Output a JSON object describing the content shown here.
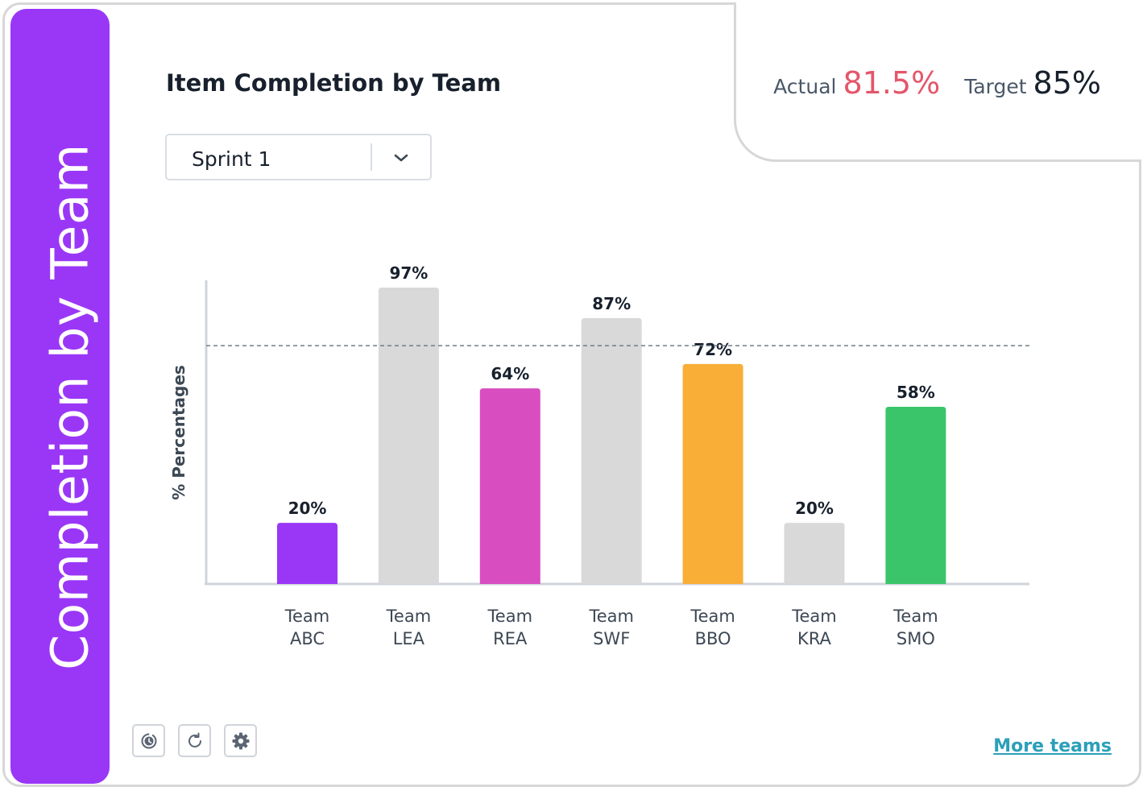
{
  "sidebar": {
    "title": "Completion by Team"
  },
  "kpi": {
    "actual_label": "Actual",
    "actual_value": "81.5%",
    "target_label": "Target",
    "target_value": "85%"
  },
  "heading": "Item Completion by Team",
  "sprint_select": {
    "value": "Sprint 1"
  },
  "chart_data": {
    "type": "bar",
    "ylabel": "% Percentages",
    "categories": [
      [
        "Team",
        "ABC"
      ],
      [
        "Team",
        "LEA"
      ],
      [
        "Team",
        "REA"
      ],
      [
        "Team",
        "SWF"
      ],
      [
        "Team",
        "BBO"
      ],
      [
        "Team",
        "KRA"
      ],
      [
        "Team",
        "SMO"
      ]
    ],
    "values": [
      20,
      97,
      64,
      87,
      72,
      20,
      58
    ],
    "data_labels": [
      "20%",
      "97%",
      "64%",
      "87%",
      "72%",
      "20%",
      "58%"
    ],
    "colors": [
      "#9a37f7",
      "#d9d9d9",
      "#d84ec1",
      "#d9d9d9",
      "#f8ae37",
      "#d9d9d9",
      "#3bc56b"
    ],
    "target_line": 78,
    "ylim": [
      0,
      100
    ]
  },
  "toolbar": {
    "history_icon": "history-icon",
    "refresh_icon": "refresh-icon",
    "settings_icon": "gear-icon"
  },
  "more_link": "More teams"
}
